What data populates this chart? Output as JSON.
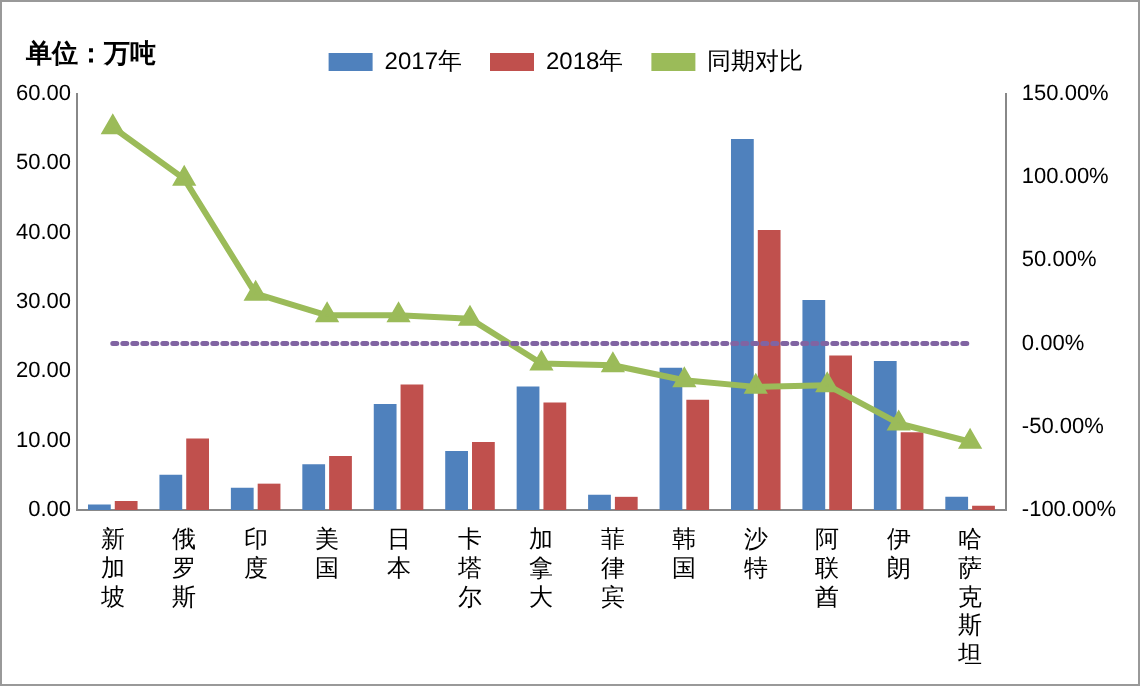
{
  "chart_data": {
    "type": "bar",
    "ylabel": "单位：万吨",
    "categories": [
      "新加坡",
      "俄罗斯",
      "印度",
      "美国",
      "日本",
      "卡塔尔",
      "加拿大",
      "菲律宾",
      "韩国",
      "沙特",
      "阿联酋",
      "伊朗",
      "哈萨克斯坦"
    ],
    "series": [
      {
        "name": "2017年",
        "color": "#4f81bd",
        "values": [
          0.8,
          5.1,
          3.2,
          6.6,
          15.3,
          8.5,
          17.8,
          2.2,
          20.5,
          53.5,
          30.3,
          21.5,
          1.9
        ]
      },
      {
        "name": "2018年",
        "color": "#c0504d",
        "values": [
          1.3,
          10.3,
          3.8,
          7.8,
          18.1,
          9.8,
          15.5,
          1.9,
          15.9,
          40.4,
          22.3,
          11.2,
          0.6
        ]
      },
      {
        "name": "同期对比",
        "type": "line",
        "axis": "y2",
        "color": "#9bbb59",
        "marker": "triangle",
        "values": [
          130,
          99,
          30,
          17,
          17,
          15,
          -12,
          -13,
          -22,
          -26,
          -25,
          -48,
          -59
        ]
      }
    ],
    "ylim": [
      0,
      60
    ],
    "yticks": [
      {
        "value": 0,
        "label": "0.00"
      },
      {
        "value": 10,
        "label": "10.00"
      },
      {
        "value": 20,
        "label": "20.00"
      },
      {
        "value": 30,
        "label": "30.00"
      },
      {
        "value": 40,
        "label": "40.00"
      },
      {
        "value": 50,
        "label": "50.00"
      },
      {
        "value": 60,
        "label": "60.00"
      }
    ],
    "y2lim": [
      -100,
      150
    ],
    "y2ticks": [
      {
        "value": -100,
        "label": "-100.00%"
      },
      {
        "value": -50,
        "label": "-50.00%"
      },
      {
        "value": 0,
        "label": "0.00%"
      },
      {
        "value": 50,
        "label": "50.00%"
      },
      {
        "value": 100,
        "label": "100.00%"
      },
      {
        "value": 150,
        "label": "150.00%"
      }
    ],
    "ref_lines": [
      {
        "axis": "y2",
        "value": 0,
        "color": "#8064a2",
        "line_style": "dotted"
      }
    ],
    "grid": false,
    "legend": "top"
  }
}
